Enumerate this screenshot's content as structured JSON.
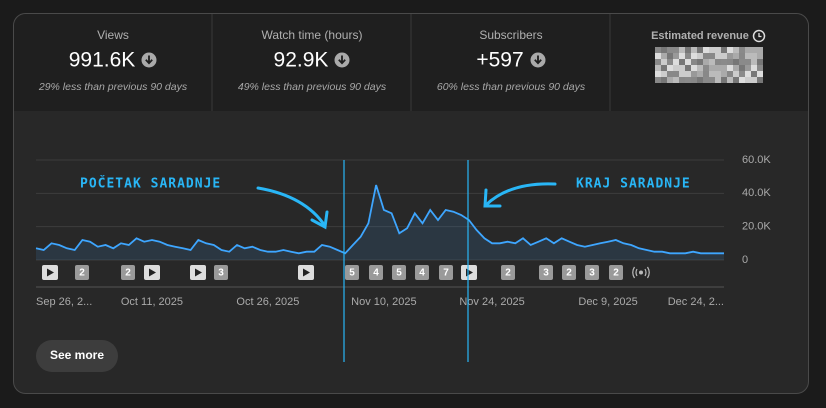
{
  "tabs": [
    {
      "title": "Views",
      "value": "991.6K",
      "comparison": "29% less than previous 90 days"
    },
    {
      "title": "Watch time (hours)",
      "value": "92.9K",
      "comparison": "49% less than previous 90 days"
    },
    {
      "title": "Subscribers",
      "value": "+597",
      "comparison": "60% less than previous 90 days"
    },
    {
      "title": "Estimated revenue"
    }
  ],
  "chart_data": {
    "type": "line",
    "categories": [
      "Sep 26, 2...",
      null,
      null,
      null,
      null,
      null,
      null,
      null,
      null,
      null,
      null,
      null,
      null,
      null,
      null,
      "Oct 11, 2025",
      null,
      null,
      null,
      null,
      null,
      null,
      null,
      null,
      null,
      null,
      null,
      null,
      null,
      null,
      "Oct 26, 2025",
      null,
      null,
      null,
      null,
      null,
      null,
      null,
      null,
      null,
      null,
      null,
      null,
      null,
      null,
      "Nov 10, 2025",
      null,
      null,
      null,
      null,
      null,
      null,
      null,
      null,
      null,
      null,
      null,
      null,
      null,
      "Nov 24, 2025",
      null,
      null,
      null,
      null,
      null,
      null,
      null,
      null,
      null,
      null,
      null,
      null,
      null,
      null,
      "Dec 9, 2025",
      null,
      null,
      null,
      null,
      null,
      null,
      null,
      null,
      null,
      null,
      null,
      null,
      null,
      null,
      "Dec 24, 2..."
    ],
    "series": [
      {
        "color": "#3ea6ff",
        "values": [
          7000,
          6000,
          10000,
          9000,
          7000,
          6000,
          12000,
          11000,
          8000,
          9000,
          7000,
          10000,
          9000,
          13000,
          11000,
          12000,
          11000,
          9000,
          8000,
          7000,
          6000,
          12000,
          10000,
          9000,
          6000,
          5000,
          9000,
          7000,
          8000,
          6000,
          5000,
          5000,
          6000,
          5000,
          4000,
          5000,
          5000,
          9000,
          8000,
          6000,
          4000,
          9000,
          14000,
          22000,
          45000,
          30000,
          28000,
          16000,
          19000,
          28000,
          22000,
          30000,
          24000,
          30000,
          29000,
          27000,
          24000,
          18000,
          13000,
          10000,
          10000,
          11000,
          10000,
          13000,
          9000,
          11000,
          13000,
          10000,
          13000,
          11000,
          9000,
          8000,
          9000,
          10000,
          11000,
          12000,
          10000,
          9000,
          7000,
          6000,
          5000,
          5000,
          4000,
          4000,
          4000,
          5000,
          4000,
          4000,
          4000,
          4000
        ]
      }
    ],
    "ylim": [
      0,
      60000
    ],
    "yticks": [
      0,
      {
        "value": 20000,
        "label": "20.0K"
      },
      {
        "value": 40000,
        "label": "40.0K"
      },
      {
        "value": 60000,
        "label": "60.0K"
      }
    ],
    "grid": true
  },
  "annotations": [
    "POČETAK SARADNJE",
    "KRAJ SARADNJE"
  ],
  "timeline_badges": [
    2,
    2,
    3,
    5,
    4,
    5,
    4,
    7,
    2,
    3,
    2,
    3,
    2
  ],
  "button": "See more"
}
